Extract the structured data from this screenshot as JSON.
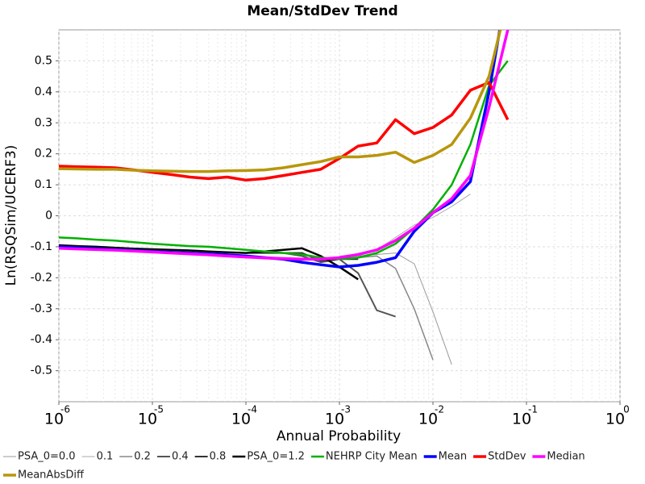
{
  "chart_data": {
    "type": "line",
    "title": "Mean/StdDev Trend",
    "x_label": "Annual Probability",
    "y_label": "Ln(RSQSim/UCERF3)",
    "x_scale": "log",
    "grid": true,
    "minor_grid": true,
    "legend_position": "bottom",
    "xlim": [
      1e-06,
      1
    ],
    "xticks": [
      {
        "value": 1e-06,
        "label": "10",
        "exponent": "-6"
      },
      {
        "value": 1e-05,
        "label": "10",
        "exponent": "-5"
      },
      {
        "value": 0.0001,
        "label": "10",
        "exponent": "-4"
      },
      {
        "value": 0.001,
        "label": "10",
        "exponent": "-3"
      },
      {
        "value": 0.01,
        "label": "10",
        "exponent": "-2"
      },
      {
        "value": 0.1,
        "label": "10",
        "exponent": "-1"
      },
      {
        "value": 1,
        "label": "10",
        "exponent": "0"
      }
    ],
    "ylim": [
      -0.6,
      0.6
    ],
    "yticks": [
      -0.5,
      -0.4,
      -0.3,
      -0.2,
      -0.1,
      0,
      0.1,
      0.2,
      0.3,
      0.4,
      0.5
    ],
    "x": [
      1e-06,
      1.585e-06,
      2.512e-06,
      3.981e-06,
      6.31e-06,
      1e-05,
      1.585e-05,
      2.512e-05,
      3.981e-05,
      6.31e-05,
      0.0001,
      0.0001585,
      0.0002512,
      0.0003981,
      0.000631,
      0.001,
      0.001585,
      0.002512,
      0.003981,
      0.00631,
      0.01,
      0.01585,
      0.02512,
      0.03981,
      0.0631
    ],
    "series": [
      {
        "name": "PSA_0=0.0",
        "color": "#999999",
        "line_width": 1,
        "values": [
          null,
          null,
          null,
          null,
          null,
          null,
          null,
          null,
          null,
          null,
          null,
          null,
          null,
          null,
          -0.14,
          -0.135,
          -0.13,
          -0.125,
          -0.12,
          -0.155,
          -0.31,
          -0.48,
          null,
          null,
          null
        ]
      },
      {
        "name": "0.1",
        "color": "#aaaaaa",
        "line_width": 1,
        "values": [
          null,
          null,
          null,
          null,
          null,
          null,
          null,
          null,
          null,
          null,
          null,
          null,
          null,
          null,
          null,
          -0.13,
          -0.125,
          -0.11,
          -0.07,
          -0.03,
          -0.005,
          0.03,
          0.07,
          null,
          null
        ]
      },
      {
        "name": "0.2",
        "color": "#888888",
        "line_width": 1.5,
        "values": [
          null,
          null,
          null,
          null,
          null,
          null,
          null,
          null,
          null,
          null,
          null,
          null,
          null,
          null,
          null,
          -0.14,
          -0.135,
          -0.13,
          -0.17,
          -0.3,
          -0.465,
          null,
          null,
          null,
          null
        ]
      },
      {
        "name": "0.4",
        "color": "#555555",
        "line_width": 2,
        "values": [
          null,
          null,
          null,
          null,
          null,
          null,
          null,
          null,
          null,
          null,
          null,
          null,
          -0.12,
          -0.13,
          -0.15,
          -0.14,
          -0.185,
          -0.305,
          -0.325,
          null,
          null,
          null,
          null,
          null,
          null
        ]
      },
      {
        "name": "0.8",
        "color": "#333333",
        "line_width": 2,
        "values": [
          null,
          null,
          null,
          null,
          null,
          null,
          null,
          null,
          null,
          null,
          -0.12,
          -0.12,
          -0.12,
          -0.12,
          -0.145,
          -0.14,
          -0.14,
          null,
          null,
          null,
          null,
          null,
          null,
          null,
          null
        ]
      },
      {
        "name": "PSA_0=1.2",
        "color": "#000000",
        "line_width": 2.5,
        "values": [
          -0.095,
          -0.098,
          -0.1,
          -0.103,
          -0.106,
          -0.108,
          -0.11,
          -0.112,
          -0.115,
          -0.118,
          -0.12,
          -0.115,
          -0.11,
          -0.105,
          -0.13,
          -0.165,
          -0.205,
          null,
          null,
          null,
          null,
          null,
          null,
          null,
          null
        ]
      },
      {
        "name": "NEHRP City Mean",
        "color": "#00b000",
        "line_width": 2.5,
        "values": [
          -0.07,
          -0.073,
          -0.077,
          -0.08,
          -0.085,
          -0.09,
          -0.094,
          -0.098,
          -0.1,
          -0.105,
          -0.11,
          -0.115,
          -0.12,
          -0.125,
          -0.135,
          -0.14,
          -0.135,
          -0.12,
          -0.09,
          -0.04,
          0.02,
          0.1,
          0.23,
          0.42,
          0.5
        ]
      },
      {
        "name": "Mean",
        "color": "#0000ff",
        "line_width": 3.5,
        "values": [
          -0.1,
          -0.103,
          -0.106,
          -0.109,
          -0.112,
          -0.115,
          -0.118,
          -0.12,
          -0.123,
          -0.126,
          -0.13,
          -0.135,
          -0.14,
          -0.15,
          -0.158,
          -0.165,
          -0.16,
          -0.15,
          -0.135,
          -0.05,
          0.01,
          0.045,
          0.11,
          0.4,
          0.75
        ]
      },
      {
        "name": "StdDev",
        "color": "#ff0000",
        "line_width": 3.5,
        "values": [
          0.16,
          0.158,
          0.157,
          0.155,
          0.148,
          0.14,
          0.133,
          0.125,
          0.12,
          0.125,
          0.115,
          0.12,
          0.13,
          0.14,
          0.15,
          0.185,
          0.225,
          0.235,
          0.31,
          0.265,
          0.285,
          0.325,
          0.405,
          0.43,
          0.31
        ]
      },
      {
        "name": "Median",
        "color": "#ff00ff",
        "line_width": 3.5,
        "values": [
          -0.105,
          -0.107,
          -0.109,
          -0.111,
          -0.114,
          -0.117,
          -0.12,
          -0.123,
          -0.126,
          -0.13,
          -0.133,
          -0.136,
          -0.138,
          -0.14,
          -0.14,
          -0.135,
          -0.125,
          -0.11,
          -0.08,
          -0.04,
          0.01,
          0.055,
          0.13,
          0.35,
          0.6
        ]
      },
      {
        "name": "MeanAbsDiff",
        "color": "#b8960c",
        "line_width": 3.5,
        "values": [
          0.152,
          0.151,
          0.15,
          0.15,
          0.147,
          0.145,
          0.144,
          0.143,
          0.143,
          0.145,
          0.146,
          0.148,
          0.155,
          0.165,
          0.175,
          0.19,
          0.19,
          0.195,
          0.205,
          0.172,
          0.195,
          0.23,
          0.315,
          0.45,
          0.7
        ]
      }
    ]
  }
}
